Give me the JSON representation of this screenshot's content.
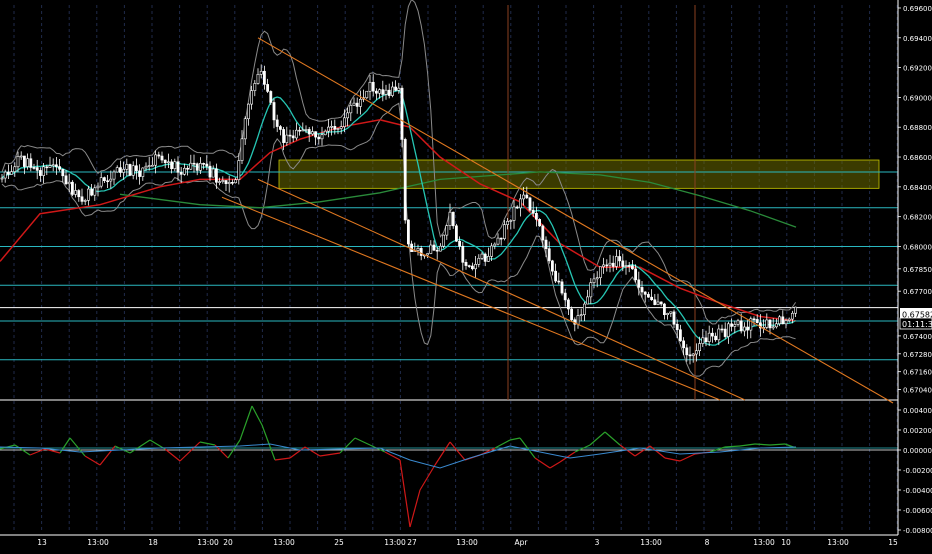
{
  "chart_data": {
    "type": "candlestick",
    "price_axis": {
      "range": [
        0.6697,
        0.6962
      ],
      "ticks": [
        "0.69600",
        "0.69400",
        "0.69200",
        "0.69000",
        "0.68800",
        "0.68600",
        "0.68400",
        "0.68200",
        "0.68000",
        "0.67850",
        "0.67700",
        "0.67400",
        "0.67280",
        "0.67160",
        "0.67040"
      ]
    },
    "current_price_label": "0.67582",
    "countdown_label": "01:11:37",
    "time_axis_labels": [
      "13",
      "13:00",
      "18",
      "13:00",
      "20",
      "13:00",
      "25",
      "13:00",
      "27",
      "13:00",
      "Apr",
      "3",
      "13:00",
      "8",
      "13:00",
      "10",
      "13:00",
      "15"
    ],
    "oscillator_axis": {
      "range": [
        -0.0082,
        0.0042
      ],
      "ticks": [
        "0.00400",
        "0.00200",
        "0.00000",
        "-0.00200",
        "-0.00400",
        "-0.00600",
        "-0.00800"
      ]
    },
    "horizontal_levels": [
      0.685,
      0.6826,
      0.68,
      0.6774,
      0.6759,
      0.675,
      0.6724
    ],
    "supply_zone": {
      "from": 0.6839,
      "to": 0.6858,
      "color": "#6b6b00"
    },
    "colors": {
      "background": "#000000",
      "candle": "#ffffff",
      "bollinger": "#8a8a8a",
      "ema_fast": "#26c6b4",
      "ma_red": "#d01818",
      "ma_green": "#2a8a3a",
      "level_lines": "#2ab8c0",
      "channel": "#e07820",
      "osc_positive": "#2aa02a",
      "osc_negative": "#d01818",
      "osc_signal": "#3a8ad0"
    },
    "close_series_anchor_points": [
      [
        0,
        0.6844
      ],
      [
        20,
        0.6858
      ],
      [
        40,
        0.685
      ],
      [
        60,
        0.6852
      ],
      [
        80,
        0.683
      ],
      [
        100,
        0.6842
      ],
      [
        120,
        0.6852
      ],
      [
        140,
        0.685
      ],
      [
        160,
        0.6862
      ],
      [
        180,
        0.685
      ],
      [
        200,
        0.6854
      ],
      [
        220,
        0.6845
      ],
      [
        235,
        0.684
      ],
      [
        250,
        0.6905
      ],
      [
        262,
        0.6915
      ],
      [
        272,
        0.689
      ],
      [
        284,
        0.687
      ],
      [
        300,
        0.6878
      ],
      [
        320,
        0.6875
      ],
      [
        340,
        0.688
      ],
      [
        355,
        0.6895
      ],
      [
        370,
        0.6907
      ],
      [
        385,
        0.6902
      ],
      [
        400,
        0.6905
      ],
      [
        406,
        0.68
      ],
      [
        420,
        0.6795
      ],
      [
        440,
        0.68
      ],
      [
        450,
        0.6822
      ],
      [
        465,
        0.6785
      ],
      [
        480,
        0.679
      ],
      [
        495,
        0.68
      ],
      [
        510,
        0.682
      ],
      [
        522,
        0.6833
      ],
      [
        535,
        0.6822
      ],
      [
        550,
        0.679
      ],
      [
        560,
        0.677
      ],
      [
        572,
        0.6752
      ],
      [
        580,
        0.675
      ],
      [
        592,
        0.6775
      ],
      [
        605,
        0.679
      ],
      [
        620,
        0.679
      ],
      [
        632,
        0.6782
      ],
      [
        645,
        0.6765
      ],
      [
        660,
        0.676
      ],
      [
        672,
        0.6755
      ],
      [
        685,
        0.6728
      ],
      [
        700,
        0.6735
      ],
      [
        715,
        0.674
      ],
      [
        730,
        0.6745
      ],
      [
        745,
        0.6748
      ],
      [
        760,
        0.6747
      ],
      [
        775,
        0.675
      ],
      [
        790,
        0.6752
      ],
      [
        796,
        0.6758
      ]
    ],
    "ma_red_points": [
      [
        0,
        0.679
      ],
      [
        40,
        0.6822
      ],
      [
        100,
        0.6828
      ],
      [
        160,
        0.684
      ],
      [
        200,
        0.6845
      ],
      [
        240,
        0.6845
      ],
      [
        270,
        0.6863
      ],
      [
        300,
        0.6872
      ],
      [
        340,
        0.688
      ],
      [
        380,
        0.6885
      ],
      [
        410,
        0.688
      ],
      [
        440,
        0.686
      ],
      [
        480,
        0.6842
      ],
      [
        520,
        0.683
      ],
      [
        560,
        0.6802
      ],
      [
        600,
        0.6786
      ],
      [
        640,
        0.6786
      ],
      [
        680,
        0.6772
      ],
      [
        720,
        0.6762
      ],
      [
        760,
        0.6753
      ],
      [
        796,
        0.675
      ]
    ],
    "ma_green_points": [
      [
        120,
        0.6835
      ],
      [
        200,
        0.6828
      ],
      [
        260,
        0.6826
      ],
      [
        320,
        0.683
      ],
      [
        380,
        0.6836
      ],
      [
        440,
        0.6845
      ],
      [
        500,
        0.6848
      ],
      [
        540,
        0.685
      ],
      [
        600,
        0.6848
      ],
      [
        650,
        0.6843
      ],
      [
        700,
        0.6834
      ],
      [
        750,
        0.6824
      ],
      [
        796,
        0.6813
      ]
    ],
    "channel_lines": [
      {
        "from": [
          258,
          0.694
        ],
        "to": [
          893,
          0.6695
        ]
      },
      {
        "from": [
          258,
          0.6845
        ],
        "to": [
          745,
          0.6697
        ]
      },
      {
        "from": [
          222,
          0.6833
        ],
        "to": [
          720,
          0.6697
        ]
      }
    ],
    "vertical_markers_x": [
      508,
      695
    ],
    "oscillator_points": [
      [
        0,
        0.0001
      ],
      [
        15,
        0.0005
      ],
      [
        30,
        -0.0005
      ],
      [
        45,
        0.0001
      ],
      [
        60,
        -0.0003
      ],
      [
        70,
        0.0012
      ],
      [
        85,
        -0.0006
      ],
      [
        100,
        -0.0015
      ],
      [
        115,
        0.0004
      ],
      [
        130,
        -0.0003
      ],
      [
        150,
        0.001
      ],
      [
        165,
        0.0001
      ],
      [
        180,
        -0.0011
      ],
      [
        200,
        0.0008
      ],
      [
        215,
        0.0005
      ],
      [
        228,
        -0.0008
      ],
      [
        240,
        0.001
      ],
      [
        252,
        0.0044
      ],
      [
        262,
        0.0025
      ],
      [
        275,
        -0.001
      ],
      [
        290,
        -0.0008
      ],
      [
        305,
        0.0003
      ],
      [
        320,
        -0.0006
      ],
      [
        340,
        -0.0003
      ],
      [
        355,
        0.0012
      ],
      [
        370,
        0.0005
      ],
      [
        385,
        -0.0002
      ],
      [
        400,
        -0.001
      ],
      [
        410,
        -0.0077
      ],
      [
        420,
        -0.004
      ],
      [
        435,
        -0.0015
      ],
      [
        450,
        0.0008
      ],
      [
        465,
        -0.001
      ],
      [
        480,
        -0.0005
      ],
      [
        495,
        0.0002
      ],
      [
        510,
        0.001
      ],
      [
        520,
        0.0012
      ],
      [
        535,
        -0.0008
      ],
      [
        550,
        -0.0018
      ],
      [
        560,
        -0.0012
      ],
      [
        575,
        -0.0002
      ],
      [
        590,
        0.0005
      ],
      [
        605,
        0.0018
      ],
      [
        620,
        0.0005
      ],
      [
        635,
        -0.0006
      ],
      [
        650,
        0.0004
      ],
      [
        665,
        -0.0008
      ],
      [
        680,
        -0.0011
      ],
      [
        695,
        -0.0004
      ],
      [
        710,
        -0.0002
      ],
      [
        725,
        0.0003
      ],
      [
        740,
        0.0004
      ],
      [
        755,
        0.0006
      ],
      [
        770,
        0.0005
      ],
      [
        785,
        0.0006
      ],
      [
        796,
        0.0002
      ]
    ],
    "signal_points": [
      [
        0,
        0.0003
      ],
      [
        40,
        0.0002
      ],
      [
        80,
        -0.0002
      ],
      [
        120,
        0.0
      ],
      [
        160,
        0.0002
      ],
      [
        200,
        0.0003
      ],
      [
        240,
        0.0004
      ],
      [
        270,
        0.0006
      ],
      [
        300,
        0.0
      ],
      [
        340,
        0.0001
      ],
      [
        380,
        0.0002
      ],
      [
        410,
        -0.001
      ],
      [
        440,
        -0.0018
      ],
      [
        470,
        -0.0008
      ],
      [
        510,
        0.0004
      ],
      [
        540,
        -0.0002
      ],
      [
        570,
        -0.0008
      ],
      [
        600,
        -0.0004
      ],
      [
        640,
        0.0002
      ],
      [
        680,
        -0.0004
      ],
      [
        720,
        -0.0002
      ],
      [
        760,
        0.0002
      ],
      [
        796,
        0.0003
      ]
    ]
  }
}
